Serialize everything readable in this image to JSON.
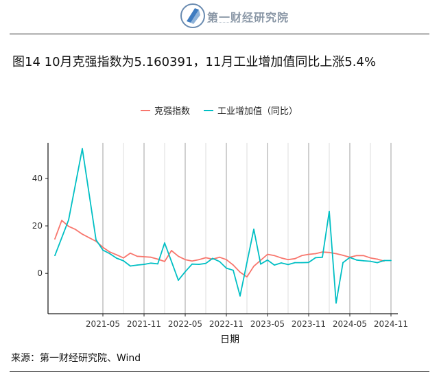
{
  "logo": {
    "name": "第一财经研究院"
  },
  "title": "图14 10月克强指数为5.160391，11月工业增加值同比上涨5.4%",
  "source": "来源：第一财经研究院、Wind",
  "chart_data": {
    "type": "line",
    "xlabel": "日期",
    "ylabel": "",
    "ylim": [
      -17,
      55
    ],
    "xlim": [
      "2020-09",
      "2024-12"
    ],
    "y_ticks": [
      0,
      20,
      40
    ],
    "x_ticks": [
      "2021-05",
      "2021-11",
      "2022-05",
      "2022-11",
      "2023-05",
      "2023-11",
      "2024-05",
      "2024-11"
    ],
    "legend_position": "top",
    "grid": "vertical major and minor gridlines only",
    "series": [
      {
        "name": "克强指数",
        "color": "#F8766D",
        "x": [
          "2020-10",
          "2020-11",
          "2020-12",
          "2021-01",
          "2021-02",
          "2021-03",
          "2021-04",
          "2021-05",
          "2021-06",
          "2021-07",
          "2021-08",
          "2021-09",
          "2021-10",
          "2021-11",
          "2021-12",
          "2022-01",
          "2022-02",
          "2022-03",
          "2022-04",
          "2022-05",
          "2022-06",
          "2022-07",
          "2022-08",
          "2022-09",
          "2022-10",
          "2022-11",
          "2022-12",
          "2023-01",
          "2023-02",
          "2023-03",
          "2023-04",
          "2023-05",
          "2023-06",
          "2023-07",
          "2023-08",
          "2023-09",
          "2023-10",
          "2023-11",
          "2023-12",
          "2024-01",
          "2024-02",
          "2024-03",
          "2024-04",
          "2024-05",
          "2024-06",
          "2024-07",
          "2024-08",
          "2024-09",
          "2024-10"
        ],
        "values": [
          14.5,
          22.3,
          19.8,
          18.5,
          16.5,
          15.0,
          13.5,
          11.0,
          9.0,
          7.8,
          6.5,
          8.5,
          7.2,
          7.0,
          6.8,
          6.0,
          5.0,
          9.6,
          7.2,
          5.8,
          5.2,
          5.8,
          6.6,
          6.0,
          6.8,
          5.8,
          3.5,
          0.5,
          -1.5,
          3.0,
          5.5,
          8.0,
          7.5,
          6.5,
          5.8,
          6.2,
          7.5,
          8.0,
          8.3,
          9.0,
          8.8,
          8.3,
          7.6,
          6.8,
          7.5,
          7.5,
          6.5,
          6.0,
          5.16
        ]
      },
      {
        "name": "工业增加值（同比）",
        "color": "#00BFC4",
        "x": [
          "2020-10",
          "2020-12",
          "2021-02",
          "2021-04",
          "2021-05",
          "2021-06",
          "2021-07",
          "2021-08",
          "2021-09",
          "2021-10",
          "2021-11",
          "2021-12",
          "2022-01",
          "2022-02",
          "2022-03",
          "2022-04",
          "2022-05",
          "2022-06",
          "2022-07",
          "2022-08",
          "2022-09",
          "2022-10",
          "2022-11",
          "2022-12",
          "2023-01",
          "2023-03",
          "2023-04",
          "2023-05",
          "2023-06",
          "2023-07",
          "2023-08",
          "2023-09",
          "2023-10",
          "2023-11",
          "2023-12",
          "2024-01",
          "2024-02",
          "2024-03",
          "2024-04",
          "2024-05",
          "2024-06",
          "2024-07",
          "2024-08",
          "2024-09",
          "2024-10",
          "2024-11"
        ],
        "values": [
          7.5,
          22.5,
          52.5,
          14.1,
          9.8,
          8.3,
          6.4,
          5.3,
          3.1,
          3.5,
          3.8,
          4.3,
          4.0,
          12.8,
          5.0,
          -2.9,
          0.7,
          3.9,
          3.8,
          4.2,
          6.3,
          5.0,
          2.2,
          1.3,
          -9.5,
          18.6,
          3.9,
          5.6,
          3.5,
          4.4,
          3.7,
          4.5,
          4.5,
          4.6,
          6.6,
          6.8,
          26.1,
          -12.5,
          4.5,
          6.7,
          5.6,
          5.3,
          5.1,
          4.5,
          5.4,
          5.4
        ]
      }
    ]
  }
}
